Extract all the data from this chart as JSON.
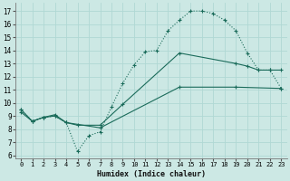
{
  "xlabel": "Humidex (Indice chaleur)",
  "background_color": "#cce8e4",
  "grid_color": "#b0d8d4",
  "line_color": "#1a6b5a",
  "xlim": [
    -0.5,
    23.5
  ],
  "ylim": [
    5.8,
    17.6
  ],
  "xticks": [
    0,
    1,
    2,
    3,
    4,
    5,
    6,
    7,
    8,
    9,
    10,
    11,
    12,
    13,
    14,
    15,
    16,
    17,
    18,
    19,
    20,
    21,
    22,
    23
  ],
  "yticks": [
    6,
    7,
    8,
    9,
    10,
    11,
    12,
    13,
    14,
    15,
    16,
    17
  ],
  "curve1_x": [
    0,
    1,
    2,
    3,
    4,
    5,
    6,
    7,
    8,
    9,
    10,
    11,
    12,
    13,
    14,
    15,
    16,
    17,
    18,
    19,
    20,
    21,
    22,
    23
  ],
  "curve1_y": [
    9.5,
    8.6,
    8.9,
    9.0,
    8.5,
    6.3,
    7.5,
    7.8,
    9.7,
    11.5,
    12.9,
    13.9,
    14.0,
    15.5,
    16.3,
    17.0,
    17.0,
    16.8,
    16.3,
    15.5,
    13.8,
    12.5,
    12.5,
    11.1
  ],
  "curve2_x": [
    0,
    1,
    2,
    3,
    4,
    5,
    7,
    9,
    14,
    19,
    20,
    21,
    22,
    23
  ],
  "curve2_y": [
    9.5,
    8.6,
    8.9,
    9.1,
    8.5,
    8.3,
    8.3,
    9.9,
    13.8,
    13.0,
    12.8,
    12.5,
    12.5,
    12.5
  ],
  "curve3_x": [
    0,
    1,
    2,
    3,
    4,
    7,
    14,
    19,
    23
  ],
  "curve3_y": [
    9.3,
    8.6,
    8.9,
    9.0,
    8.5,
    8.1,
    11.2,
    11.2,
    11.1
  ]
}
